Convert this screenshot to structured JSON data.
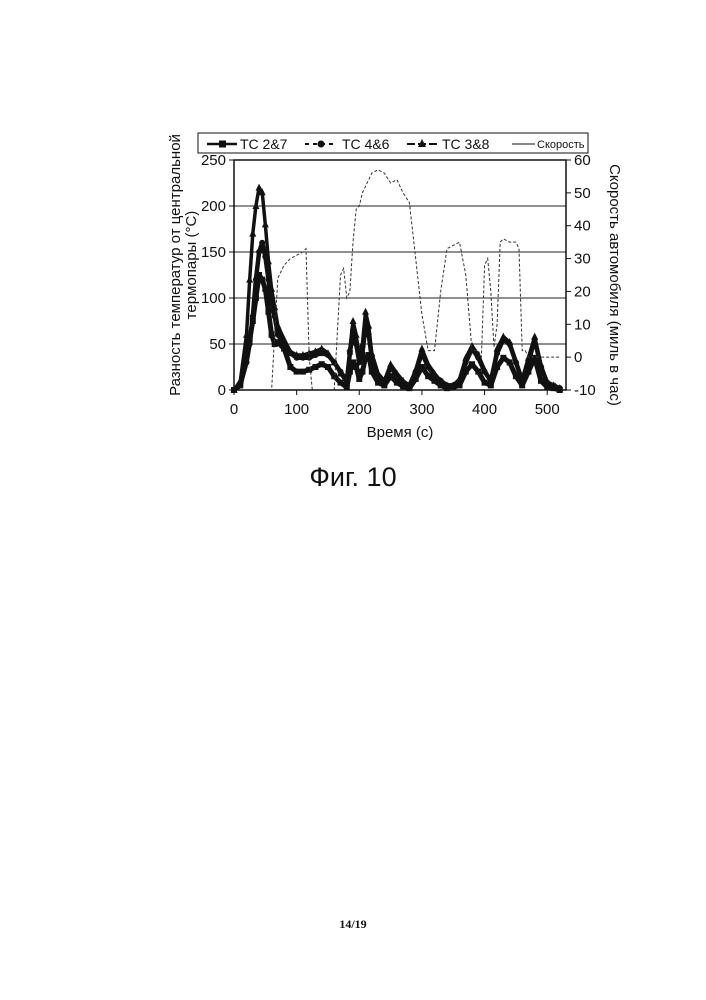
{
  "figure": {
    "caption": "Фиг. 10",
    "page_number": "14/19"
  },
  "chart_data": {
    "type": "line",
    "xlabel": "Время (с)",
    "ylabel_left_line1": "Разность температур от центральной",
    "ylabel_left_line2": "термопары (°С)",
    "ylabel_right": "Скорость автомобиля (миль в час)",
    "xlim": [
      0,
      530
    ],
    "ylim_left": [
      0,
      250
    ],
    "ylim_right": [
      -10,
      60
    ],
    "x_ticks": [
      0,
      100,
      200,
      300,
      400,
      500
    ],
    "y_left_ticks": [
      0,
      50,
      100,
      150,
      200,
      250
    ],
    "y_right_ticks": [
      -10,
      0,
      10,
      20,
      30,
      40,
      50,
      60
    ],
    "gridlines": [
      50,
      100,
      150,
      200
    ],
    "legend": {
      "placement": "top",
      "entries": [
        "TC 2&7",
        "TC 4&6",
        "TC 3&8",
        "Скорость"
      ]
    },
    "series": [
      {
        "name": "TC 2&7",
        "axis": "left",
        "style": "thick-square",
        "x": [
          0,
          10,
          20,
          25,
          30,
          35,
          40,
          45,
          50,
          55,
          60,
          65,
          70,
          80,
          90,
          100,
          110,
          120,
          130,
          140,
          150,
          160,
          170,
          180,
          185,
          190,
          195,
          200,
          205,
          210,
          215,
          220,
          230,
          240,
          250,
          260,
          270,
          280,
          290,
          300,
          310,
          320,
          330,
          340,
          350,
          360,
          370,
          380,
          390,
          400,
          410,
          420,
          430,
          440,
          450,
          460,
          470,
          480,
          490,
          500,
          510,
          520
        ],
        "values": [
          0,
          5,
          40,
          55,
          75,
          100,
          125,
          120,
          110,
          85,
          60,
          50,
          52,
          45,
          25,
          20,
          20,
          22,
          25,
          28,
          25,
          15,
          8,
          3,
          20,
          30,
          25,
          12,
          20,
          35,
          38,
          20,
          8,
          5,
          15,
          8,
          4,
          2,
          12,
          25,
          15,
          10,
          5,
          2,
          3,
          5,
          20,
          28,
          20,
          8,
          5,
          25,
          35,
          30,
          15,
          5,
          20,
          35,
          10,
          3,
          2,
          0
        ]
      },
      {
        "name": "TC 4&6",
        "axis": "left",
        "style": "thick-circle",
        "x": [
          0,
          10,
          20,
          25,
          30,
          35,
          40,
          45,
          50,
          55,
          60,
          65,
          70,
          80,
          90,
          100,
          110,
          120,
          130,
          140,
          150,
          160,
          170,
          180,
          185,
          190,
          195,
          200,
          205,
          210,
          215,
          220,
          230,
          240,
          250,
          260,
          270,
          280,
          290,
          300,
          310,
          320,
          330,
          340,
          350,
          360,
          370,
          380,
          390,
          400,
          410,
          420,
          430,
          440,
          450,
          460,
          470,
          480,
          490,
          500,
          510,
          520
        ],
        "values": [
          0,
          5,
          30,
          50,
          80,
          120,
          150,
          160,
          145,
          120,
          95,
          80,
          60,
          50,
          40,
          35,
          35,
          35,
          38,
          40,
          38,
          30,
          20,
          10,
          40,
          65,
          50,
          30,
          40,
          70,
          60,
          35,
          15,
          8,
          25,
          15,
          8,
          5,
          20,
          40,
          25,
          15,
          10,
          5,
          5,
          10,
          30,
          45,
          35,
          20,
          10,
          40,
          55,
          50,
          30,
          10,
          30,
          55,
          25,
          8,
          5,
          2
        ]
      },
      {
        "name": "TC 3&8",
        "axis": "left",
        "style": "thick-triangle",
        "x": [
          0,
          10,
          20,
          25,
          30,
          35,
          40,
          45,
          50,
          55,
          60,
          65,
          70,
          80,
          90,
          100,
          110,
          120,
          130,
          140,
          150,
          160,
          170,
          180,
          185,
          190,
          195,
          200,
          205,
          210,
          215,
          220,
          230,
          240,
          250,
          260,
          270,
          280,
          290,
          300,
          310,
          320,
          330,
          340,
          350,
          360,
          370,
          380,
          390,
          400,
          410,
          420,
          430,
          440,
          450,
          460,
          470,
          480,
          490,
          500,
          510,
          520
        ],
        "values": [
          0,
          10,
          60,
          120,
          170,
          200,
          220,
          215,
          180,
          140,
          110,
          90,
          70,
          55,
          42,
          38,
          38,
          40,
          42,
          45,
          40,
          30,
          18,
          8,
          45,
          75,
          60,
          35,
          50,
          85,
          70,
          40,
          18,
          10,
          28,
          18,
          10,
          5,
          22,
          45,
          28,
          18,
          10,
          5,
          5,
          12,
          35,
          48,
          38,
          22,
          10,
          45,
          58,
          52,
          32,
          12,
          35,
          58,
          28,
          8,
          5,
          2
        ]
      },
      {
        "name": "Скорость",
        "axis": "right",
        "style": "thin-dashed",
        "x": [
          0,
          20,
          30,
          40,
          50,
          60,
          70,
          80,
          90,
          100,
          110,
          115,
          120,
          125,
          130,
          140,
          150,
          160,
          170,
          175,
          180,
          185,
          190,
          195,
          200,
          205,
          210,
          220,
          230,
          240,
          250,
          260,
          270,
          280,
          290,
          300,
          310,
          320,
          330,
          340,
          350,
          360,
          370,
          380,
          390,
          395,
          400,
          405,
          410,
          415,
          420,
          425,
          430,
          440,
          450,
          455,
          460,
          465,
          470,
          480,
          490,
          500,
          505,
          510,
          515,
          520
        ],
        "values": [
          -10,
          -10,
          -10,
          -10,
          -10,
          -10,
          24,
          28,
          30,
          31,
          32,
          33,
          0,
          -10,
          -10,
          -10,
          -10,
          -10,
          25,
          27,
          18,
          20,
          35,
          45,
          46,
          50,
          52,
          56,
          57,
          56,
          53,
          54,
          50,
          47,
          30,
          13,
          2,
          2,
          20,
          33,
          34,
          35,
          25,
          2,
          2,
          0,
          28,
          30,
          20,
          3,
          10,
          35,
          36,
          35,
          35,
          33,
          2,
          2,
          0,
          0,
          0,
          0,
          0,
          0,
          0,
          0
        ]
      }
    ]
  }
}
